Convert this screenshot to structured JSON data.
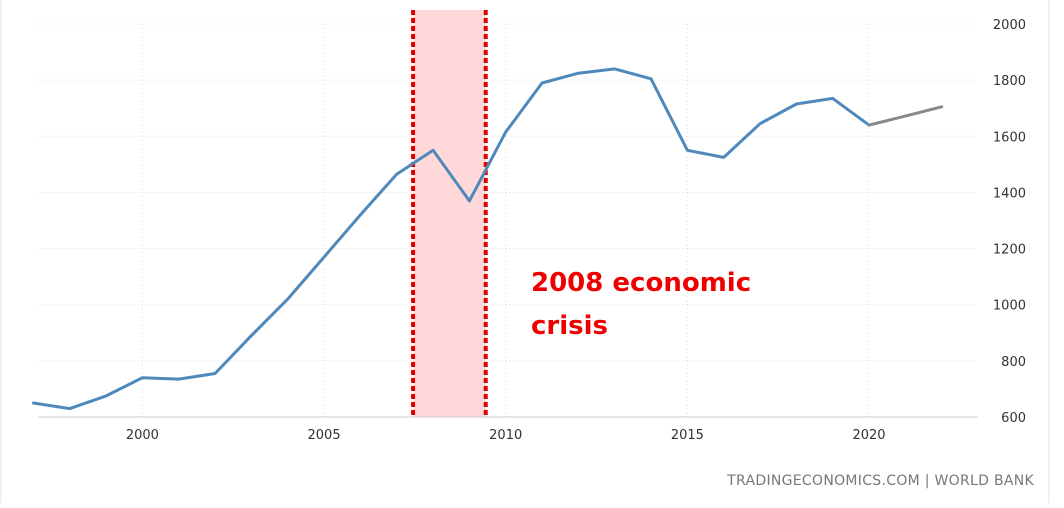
{
  "chart_data": {
    "type": "line",
    "title": "",
    "xlabel": "",
    "ylabel": "",
    "xlim": [
      1996.3,
      2023.0
    ],
    "ylim": [
      600,
      2050
    ],
    "x_ticks": [
      2000,
      2005,
      2010,
      2015,
      2020
    ],
    "x_tick_labels": [
      "2000",
      "2005",
      "2010",
      "2015",
      "2020"
    ],
    "y_ticks": [
      600,
      800,
      1000,
      1200,
      1400,
      1600,
      1800,
      2000
    ],
    "y_tick_labels": [
      "600",
      "800",
      "1000",
      "1200",
      "1400",
      "1600",
      "1800",
      "2000"
    ],
    "y_axis_position": "right",
    "grid": true,
    "legend": "none",
    "series": [
      {
        "color": "#4f89bb",
        "x": [
          1997,
          1998,
          1999,
          2000,
          2001,
          2002,
          2003,
          2004,
          2005,
          2006,
          2007,
          2008,
          2009,
          2010,
          2011,
          2012,
          2013,
          2014,
          2015,
          2016,
          2017,
          2018,
          2019,
          2020
        ],
        "values": [
          650,
          630,
          675,
          740,
          735,
          755,
          890,
          1020,
          1170,
          1320,
          1465,
          1550,
          1370,
          1615,
          1790,
          1825,
          1840,
          1805,
          1550,
          1525,
          1645,
          1715,
          1735,
          1640
        ]
      },
      {
        "color": "#888888",
        "x": [
          2020,
          2021,
          2022
        ],
        "values": [
          1640,
          1672,
          1705
        ]
      }
    ],
    "highlight": {
      "x_start": 2007.45,
      "x_end": 2009.45,
      "fill_color": "#ffd9d9",
      "border_color": "#e00000",
      "label": [
        "2008 economic",
        "crisis"
      ],
      "label_color": "#ee0000"
    },
    "source": "TRADINGECONOMICS.COM | WORLD BANK"
  }
}
